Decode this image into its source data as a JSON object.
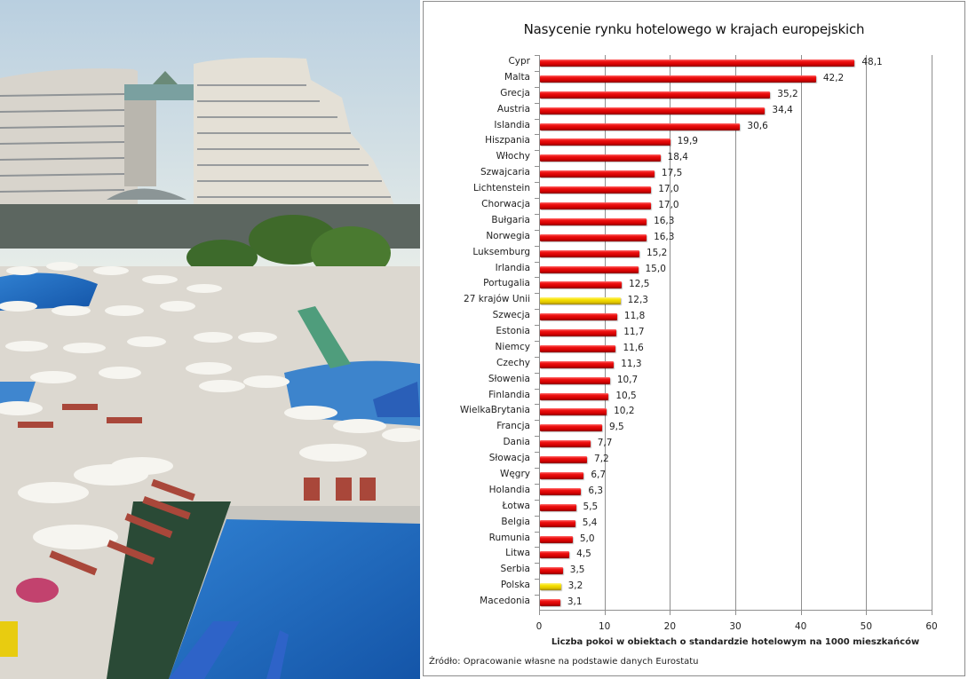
{
  "photo": {
    "description": "Hotel resort with curved white towers, swimming pools, white parasols and red sun loungers"
  },
  "chart": {
    "title": "Nasycenie rynku hotelowego w krajach europejskich",
    "xaxis_title": "Liczba pokoi w obiektach o standardzie  hotelowym na 1000 mieszkańców",
    "source": "Źródło: Opracowanie własne na podstawie danych Eurostatu",
    "x_ticks": [
      "0",
      "10",
      "20",
      "30",
      "40",
      "50",
      "60"
    ],
    "bar_color": "#e00000",
    "highlight_color": "#f5e000",
    "rows": [
      {
        "label": "Cypr",
        "value": 48.1,
        "display": "48,1",
        "highlight": false
      },
      {
        "label": "Malta",
        "value": 42.2,
        "display": "42,2",
        "highlight": false
      },
      {
        "label": "Grecja",
        "value": 35.2,
        "display": "35,2",
        "highlight": false
      },
      {
        "label": "Austria",
        "value": 34.4,
        "display": "34,4",
        "highlight": false
      },
      {
        "label": "Islandia",
        "value": 30.6,
        "display": "30,6",
        "highlight": false
      },
      {
        "label": "Hiszpania",
        "value": 19.9,
        "display": "19,9",
        "highlight": false
      },
      {
        "label": "Włochy",
        "value": 18.4,
        "display": "18,4",
        "highlight": false
      },
      {
        "label": "Szwajcaria",
        "value": 17.5,
        "display": "17,5",
        "highlight": false
      },
      {
        "label": "Lichtenstein",
        "value": 17.0,
        "display": "17,0",
        "highlight": false
      },
      {
        "label": "Chorwacja",
        "value": 17.0,
        "display": "17,0",
        "highlight": false
      },
      {
        "label": "Bułgaria",
        "value": 16.3,
        "display": "16,3",
        "highlight": false
      },
      {
        "label": "Norwegia",
        "value": 16.3,
        "display": "16,3",
        "highlight": false
      },
      {
        "label": "Luksemburg",
        "value": 15.2,
        "display": "15,2",
        "highlight": false
      },
      {
        "label": "Irlandia",
        "value": 15.0,
        "display": "15,0",
        "highlight": false
      },
      {
        "label": "Portugalia",
        "value": 12.5,
        "display": "12,5",
        "highlight": false
      },
      {
        "label": "27 krajów Unii",
        "value": 12.3,
        "display": "12,3",
        "highlight": true
      },
      {
        "label": "Szwecja",
        "value": 11.8,
        "display": "11,8",
        "highlight": false
      },
      {
        "label": "Estonia",
        "value": 11.7,
        "display": "11,7",
        "highlight": false
      },
      {
        "label": "Niemcy",
        "value": 11.6,
        "display": "11,6",
        "highlight": false
      },
      {
        "label": "Czechy",
        "value": 11.3,
        "display": "11,3",
        "highlight": false
      },
      {
        "label": "Słowenia",
        "value": 10.7,
        "display": "10,7",
        "highlight": false
      },
      {
        "label": "Finlandia",
        "value": 10.5,
        "display": "10,5",
        "highlight": false
      },
      {
        "label": "WielkaBrytania",
        "value": 10.2,
        "display": "10,2",
        "highlight": false
      },
      {
        "label": "Francja",
        "value": 9.5,
        "display": "9,5",
        "highlight": false
      },
      {
        "label": "Dania",
        "value": 7.7,
        "display": "7,7",
        "highlight": false
      },
      {
        "label": "Słowacja",
        "value": 7.2,
        "display": "7,2",
        "highlight": false
      },
      {
        "label": "Węgry",
        "value": 6.7,
        "display": "6,7",
        "highlight": false
      },
      {
        "label": "Holandia",
        "value": 6.3,
        "display": "6,3",
        "highlight": false
      },
      {
        "label": "Łotwa",
        "value": 5.5,
        "display": "5,5",
        "highlight": false
      },
      {
        "label": "Belgia",
        "value": 5.4,
        "display": "5,4",
        "highlight": false
      },
      {
        "label": "Rumunia",
        "value": 5.0,
        "display": "5,0",
        "highlight": false
      },
      {
        "label": "Litwa",
        "value": 4.5,
        "display": "4,5",
        "highlight": false
      },
      {
        "label": "Serbia",
        "value": 3.5,
        "display": "3,5",
        "highlight": false
      },
      {
        "label": "Polska",
        "value": 3.2,
        "display": "3,2",
        "highlight": true
      },
      {
        "label": "Macedonia",
        "value": 3.1,
        "display": "3,1",
        "highlight": false
      }
    ]
  },
  "chart_data": {
    "type": "bar",
    "orientation": "horizontal",
    "title": "Nasycenie rynku hotelowego w krajach europejskich",
    "xlabel": "Liczba pokoi w obiektach o standardzie hotelowym na 1000 mieszkańców",
    "ylabel": "",
    "xlim": [
      0,
      60
    ],
    "x_ticks": [
      0,
      10,
      20,
      30,
      40,
      50,
      60
    ],
    "grid": "vertical",
    "legend": "none",
    "source": "Źródło: Opracowanie własne na podstawie danych Eurostatu",
    "categories": [
      "Cypr",
      "Malta",
      "Grecja",
      "Austria",
      "Islandia",
      "Hiszpania",
      "Włochy",
      "Szwajcaria",
      "Lichtenstein",
      "Chorwacja",
      "Bułgaria",
      "Norwegia",
      "Luksemburg",
      "Irlandia",
      "Portugalia",
      "27 krajów Unii",
      "Szwecja",
      "Estonia",
      "Niemcy",
      "Czechy",
      "Słowenia",
      "Finlandia",
      "WielkaBrytania",
      "Francja",
      "Dania",
      "Słowacja",
      "Węgry",
      "Holandia",
      "Łotwa",
      "Belgia",
      "Rumunia",
      "Litwa",
      "Serbia",
      "Polska",
      "Macedonia"
    ],
    "values": [
      48.1,
      42.2,
      35.2,
      34.4,
      30.6,
      19.9,
      18.4,
      17.5,
      17.0,
      17.0,
      16.3,
      16.3,
      15.2,
      15.0,
      12.5,
      12.3,
      11.8,
      11.7,
      11.6,
      11.3,
      10.7,
      10.5,
      10.2,
      9.5,
      7.7,
      7.2,
      6.7,
      6.3,
      5.5,
      5.4,
      5.0,
      4.5,
      3.5,
      3.2,
      3.1
    ],
    "highlighted": [
      "27 krajów Unii",
      "Polska"
    ]
  }
}
